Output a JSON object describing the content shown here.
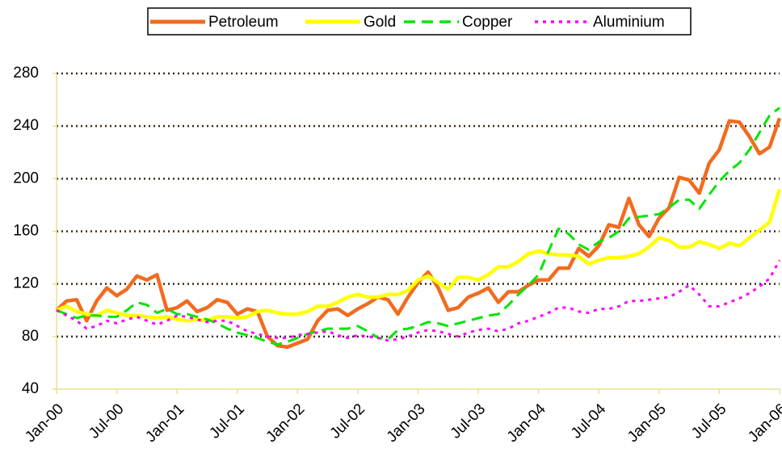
{
  "chart_data": {
    "type": "line",
    "categories": [
      "Jan-00",
      null,
      null,
      null,
      null,
      null,
      "Jul-00",
      null,
      null,
      null,
      null,
      null,
      "Jan-01",
      null,
      null,
      null,
      null,
      null,
      "Jul-01",
      null,
      null,
      null,
      null,
      null,
      "Jan-02",
      null,
      null,
      null,
      null,
      null,
      "Jul-02",
      null,
      null,
      null,
      null,
      null,
      "Jan-03",
      null,
      null,
      null,
      null,
      null,
      "Jul-03",
      null,
      null,
      null,
      null,
      null,
      "Jan-04",
      null,
      null,
      null,
      null,
      null,
      "Jul-04",
      null,
      null,
      null,
      null,
      null,
      "Jan-05",
      null,
      null,
      null,
      null,
      null,
      "Jul-05",
      null,
      null,
      null,
      null,
      null,
      "Jan-06"
    ],
    "series": [
      {
        "name": "Petroleum",
        "color": "#f26b1f",
        "dash": "solid",
        "values": [
          100,
          107,
          108,
          92,
          107,
          117,
          111,
          116,
          126,
          123,
          127,
          100,
          102,
          107,
          99,
          102,
          108,
          106,
          97,
          101,
          99,
          80,
          73,
          72,
          75,
          78,
          92,
          100,
          101,
          96,
          101,
          105,
          110,
          108,
          97,
          110,
          121,
          129,
          117,
          100,
          102,
          110,
          113,
          117,
          106,
          114,
          114,
          119,
          123,
          123,
          132,
          132,
          147,
          141,
          149,
          165,
          163,
          185,
          165,
          156,
          170,
          178,
          201,
          199,
          189,
          212,
          222,
          244,
          243,
          232,
          219,
          224,
          246
        ]
      },
      {
        "name": "Gold",
        "color": "#ffff00",
        "dash": "solid",
        "values": [
          100,
          103,
          99,
          97,
          96,
          100,
          98,
          96,
          96,
          95,
          94,
          95,
          93,
          92,
          93,
          92,
          95,
          95,
          94,
          95,
          99,
          100,
          98,
          97,
          97,
          99,
          103,
          103,
          106,
          110,
          112,
          110,
          110,
          112,
          112,
          115,
          123,
          126,
          121,
          116,
          125,
          125,
          123,
          127,
          133,
          133,
          137,
          143,
          145,
          143,
          142,
          142,
          141,
          135,
          138,
          140,
          140,
          141,
          143,
          148,
          155,
          153,
          148,
          148,
          152,
          150,
          147,
          151,
          149,
          155,
          161,
          167,
          192
        ]
      },
      {
        "name": "Copper",
        "color": "#00e600",
        "dash": "dashed",
        "values": [
          100,
          97,
          94,
          96,
          96,
          95,
          95,
          100,
          106,
          104,
          98,
          101,
          97,
          97,
          95,
          93,
          90,
          86,
          83,
          81,
          79,
          76,
          74,
          76,
          79,
          82,
          84,
          86,
          86,
          86,
          88,
          84,
          79,
          78,
          85,
          86,
          88,
          91,
          90,
          88,
          90,
          92,
          94,
          96,
          97,
          104,
          112,
          119,
          127,
          145,
          162,
          158,
          150,
          146,
          152,
          155,
          160,
          170,
          171,
          172,
          173,
          178,
          184,
          184,
          177,
          188,
          198,
          206,
          212,
          222,
          235,
          248,
          254
        ]
      },
      {
        "name": "Aluminium",
        "color": "#ff00ff",
        "dash": "dotted",
        "values": [
          100,
          96,
          92,
          86,
          88,
          92,
          90,
          93,
          95,
          92,
          89,
          92,
          96,
          95,
          93,
          91,
          92,
          92,
          88,
          84,
          82,
          80,
          79,
          79,
          81,
          82,
          83,
          84,
          81,
          79,
          81,
          80,
          79,
          77,
          78,
          80,
          83,
          85,
          84,
          82,
          80,
          83,
          85,
          86,
          84,
          86,
          90,
          92,
          95,
          98,
          102,
          102,
          99,
          98,
          101,
          101,
          103,
          107,
          107,
          108,
          109,
          110,
          114,
          119,
          112,
          103,
          103,
          106,
          109,
          113,
          118,
          124,
          138
        ]
      }
    ],
    "ylim": [
      40,
      280
    ],
    "yticks": [
      40,
      80,
      120,
      160,
      200,
      240,
      280
    ],
    "grid": true,
    "legend": "top"
  }
}
